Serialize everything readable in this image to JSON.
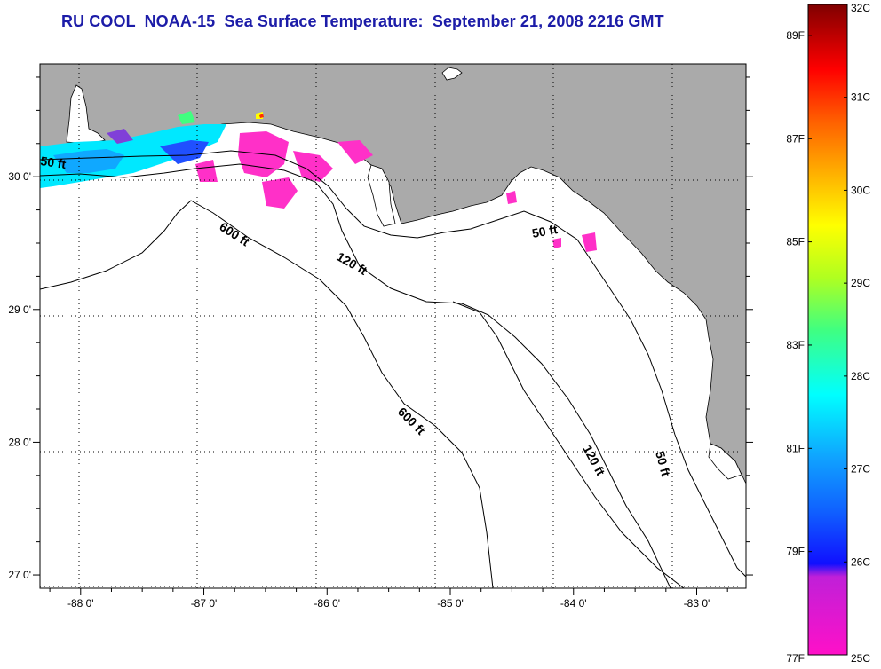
{
  "title": "RU COOL  NOAA-15  Sea Surface Temperature:  September 21, 2008 2216 GMT",
  "map": {
    "lon_range": [
      -88.33,
      -82.6
    ],
    "lat_range": [
      26.9,
      30.85
    ],
    "lon_ticks": [
      {
        "value": -88,
        "label": "-88 0'"
      },
      {
        "value": -87,
        "label": "-87 0'"
      },
      {
        "value": -86,
        "label": "-86 0'"
      },
      {
        "value": -85,
        "label": "-85 0'"
      },
      {
        "value": -84,
        "label": "-84 0'"
      },
      {
        "value": -83,
        "label": "-83 0'"
      }
    ],
    "lat_ticks": [
      {
        "value": 30,
        "label": "30 0'"
      },
      {
        "value": 29,
        "label": "29 0'"
      },
      {
        "value": 28,
        "label": "28 0'"
      },
      {
        "value": 27,
        "label": "27 0'"
      }
    ],
    "grid": "dotted",
    "land_color": "#aaaaaa",
    "water_color": "#ffffff",
    "contour_labels": {
      "c50_west": "50 ft",
      "c600_north": "600 ft",
      "c120_north": "120 ft",
      "c50_east": "50 ft",
      "c600_south": "600 ft",
      "c120_south": "120 ft",
      "c50_south": "50 ft"
    }
  },
  "colorbar": {
    "celsius_ticks": [
      "32C",
      "31C",
      "30C",
      "29C",
      "28C",
      "27C",
      "26C",
      "25C"
    ],
    "fahrenheit_ticks": [
      "89F",
      "87F",
      "85F",
      "83F",
      "81F",
      "79F",
      "77F"
    ],
    "colors": [
      "#ff10c8",
      "#8030d8",
      "#1010ff",
      "#1080ff",
      "#00ffff",
      "#40ff80",
      "#b0ff20",
      "#ffff00",
      "#ffb000",
      "#ff6000",
      "#ff0000",
      "#c00000",
      "#800000"
    ]
  }
}
